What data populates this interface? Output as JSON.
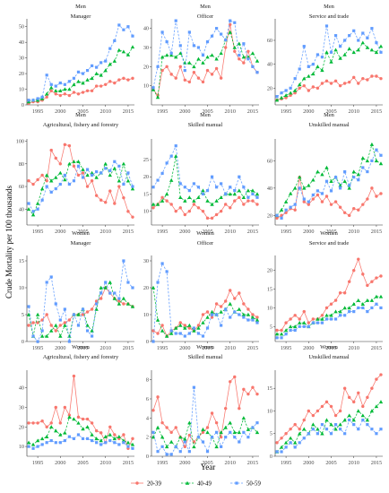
{
  "chart_data": {
    "type": "line",
    "x_label": "Year",
    "y_label": "Crude Mortality per 100 thousands",
    "legend": {
      "placement": "bottom",
      "entries": [
        {
          "name": "20-39",
          "color": "#F8766D",
          "marker": "circle"
        },
        {
          "name": "40-49",
          "color": "#00BA38",
          "marker": "triangle"
        },
        {
          "name": "50-59",
          "color": "#619CFF",
          "marker": "square"
        }
      ]
    },
    "series_styles": {
      "20-39": "solid",
      "40-49": "dashed",
      "50-59": "dashed"
    },
    "x_ticks": [
      1995,
      2000,
      2005,
      2010,
      2015
    ],
    "xlim": [
      1992.6,
      2016.4
    ],
    "years": [
      1993,
      1994,
      1995,
      1996,
      1997,
      1998,
      1999,
      2000,
      2001,
      2002,
      2003,
      2004,
      2005,
      2006,
      2007,
      2008,
      2009,
      2010,
      2011,
      2012,
      2013,
      2014,
      2015,
      2016
    ],
    "panels": [
      {
        "group": "Men",
        "occupation": "Manager",
        "ylim": [
          0,
          55
        ],
        "yticks": [
          0,
          10,
          20,
          30,
          40,
          50
        ],
        "series": {
          "20-39": [
            1,
            2,
            2,
            3,
            5,
            9,
            7,
            6,
            7,
            6,
            8,
            7,
            8,
            9,
            9,
            12,
            12,
            13,
            15,
            14,
            16,
            17,
            16,
            17
          ],
          "40-49": [
            2,
            3,
            3,
            4,
            7,
            11,
            9,
            9,
            10,
            10,
            13,
            15,
            14,
            16,
            17,
            20,
            19,
            22,
            26,
            28,
            35,
            34,
            32,
            37
          ],
          "50-59": [
            3,
            3,
            4,
            5,
            19,
            13,
            12,
            14,
            13,
            15,
            17,
            21,
            20,
            22,
            25,
            24,
            27,
            28,
            36,
            41,
            51,
            48,
            50,
            44
          ]
        }
      },
      {
        "group": "Men",
        "occupation": "Officer",
        "ylim": [
          0,
          45
        ],
        "yticks": [
          10,
          20,
          30,
          40
        ],
        "series": {
          "20-39": [
            8,
            5,
            18,
            20,
            16,
            14,
            20,
            13,
            12,
            17,
            14,
            12,
            18,
            16,
            19,
            14,
            30,
            42,
            28,
            24,
            22,
            28,
            20,
            17
          ],
          "40-49": [
            8,
            4,
            25,
            26,
            26,
            25,
            27,
            22,
            22,
            20,
            24,
            22,
            25,
            26,
            24,
            27,
            34,
            38,
            30,
            32,
            25,
            25,
            27,
            23
          ],
          "50-59": [
            9,
            20,
            38,
            33,
            27,
            44,
            31,
            18,
            38,
            31,
            30,
            26,
            33,
            36,
            40,
            37,
            34,
            44,
            43,
            26,
            32,
            24,
            20,
            17
          ]
        }
      },
      {
        "group": "Men",
        "occupation": "Service and trade",
        "ylim": [
          6,
          78
        ],
        "yticks": [
          20,
          40,
          60
        ],
        "series": {
          "20-39": [
            10,
            11,
            12,
            14,
            16,
            20,
            22,
            18,
            21,
            20,
            24,
            26,
            24,
            26,
            22,
            24,
            25,
            29,
            24,
            28,
            27,
            30,
            30,
            28
          ],
          "40-49": [
            10,
            12,
            14,
            16,
            18,
            23,
            28,
            30,
            32,
            38,
            35,
            50,
            42,
            52,
            45,
            48,
            53,
            50,
            52,
            58,
            54,
            52,
            50,
            55
          ],
          "50-59": [
            13,
            16,
            18,
            20,
            28,
            36,
            55,
            38,
            40,
            48,
            46,
            72,
            50,
            64,
            55,
            60,
            64,
            68,
            60,
            66,
            62,
            70,
            58,
            50
          ]
        }
      },
      {
        "group": "Men",
        "occupation": "Agricultural, fishery and forestry",
        "ylim": [
          26,
          102
        ],
        "yticks": [
          40,
          60,
          80,
          100
        ],
        "series": {
          "20-39": [
            65,
            62,
            66,
            70,
            65,
            92,
            85,
            80,
            97,
            96,
            78,
            70,
            72,
            60,
            65,
            52,
            48,
            46,
            56,
            45,
            60,
            50,
            38,
            33
          ],
          "40-49": [
            40,
            35,
            45,
            58,
            70,
            65,
            68,
            72,
            66,
            80,
            82,
            82,
            75,
            70,
            72,
            68,
            72,
            80,
            70,
            76,
            65,
            80,
            65,
            58
          ],
          "50-59": [
            45,
            38,
            40,
            48,
            60,
            55,
            58,
            62,
            70,
            62,
            65,
            78,
            68,
            75,
            70,
            73,
            72,
            76,
            74,
            82,
            78,
            62,
            72,
            60
          ]
        }
      },
      {
        "group": "Men",
        "occupation": "Skilled manual",
        "ylim": [
          6,
          31
        ],
        "yticks": [
          10,
          15,
          20,
          25
        ],
        "series": {
          "20-39": [
            11,
            12,
            14,
            13,
            12,
            10,
            11,
            9,
            10,
            12,
            11,
            10,
            8,
            8,
            9,
            10,
            12,
            11,
            13,
            14,
            12,
            13,
            13,
            12
          ],
          "40-49": [
            12,
            12,
            13,
            15,
            19,
            26,
            14,
            13,
            14,
            13,
            14,
            16,
            13,
            12,
            13,
            14,
            15,
            15,
            15,
            16,
            14,
            16,
            16,
            15
          ],
          "50-59": [
            17,
            19,
            21,
            24,
            26,
            29,
            18,
            17,
            16,
            18,
            17,
            15,
            16,
            20,
            17,
            18,
            15,
            17,
            16,
            20,
            17,
            14,
            15,
            14
          ]
        }
      },
      {
        "group": "Men",
        "occupation": "Unskilled manual",
        "ylim": [
          13,
          76
        ],
        "yticks": [
          20,
          40,
          60
        ],
        "series": {
          "20-39": [
            18,
            20,
            22,
            25,
            24,
            48,
            30,
            28,
            32,
            35,
            30,
            34,
            28,
            30,
            26,
            22,
            20,
            25,
            24,
            28,
            32,
            40,
            34,
            36
          ],
          "40-49": [
            20,
            24,
            30,
            36,
            40,
            48,
            40,
            42,
            46,
            52,
            50,
            55,
            45,
            48,
            42,
            45,
            40,
            52,
            50,
            62,
            60,
            72,
            60,
            58
          ],
          "50-59": [
            20,
            18,
            24,
            26,
            28,
            40,
            32,
            30,
            35,
            38,
            36,
            45,
            38,
            48,
            40,
            52,
            42,
            48,
            46,
            55,
            52,
            60,
            68,
            64
          ]
        }
      },
      {
        "group": "Women",
        "occupation": "Manager",
        "ylim": [
          0,
          16
        ],
        "yticks": [
          0,
          5,
          10,
          15
        ],
        "series": {
          "20-39": [
            3,
            3.5,
            3.5,
            4,
            5,
            3,
            2,
            3,
            3.5,
            4,
            5,
            5,
            5,
            5.5,
            6,
            7.5,
            8,
            10,
            9,
            8,
            7.5,
            7,
            7,
            6.5
          ],
          "40-49": [
            5,
            1,
            5,
            1,
            1,
            2,
            3,
            1,
            3,
            1,
            5,
            5,
            6,
            3,
            2,
            6,
            10,
            10,
            11,
            8,
            7,
            8,
            7,
            6.5
          ],
          "50-59": [
            6.5,
            1,
            0,
            2,
            11,
            12,
            7,
            4,
            6,
            0,
            5,
            3,
            6,
            2,
            1,
            7,
            9,
            11,
            9,
            9,
            8,
            15,
            11,
            10
          ]
        }
      },
      {
        "group": "Women",
        "occupation": "Officer",
        "ylim": [
          0,
          32
        ],
        "yticks": [
          0,
          10,
          20,
          30
        ],
        "series": {
          "20-39": [
            4,
            3,
            6,
            2,
            4,
            5,
            7,
            6,
            5,
            4,
            6,
            10,
            11,
            9,
            14,
            13,
            15,
            19,
            16,
            18,
            14,
            12,
            10,
            9
          ],
          "40-49": [
            20,
            8,
            4,
            2,
            3,
            5,
            6,
            5,
            6,
            4,
            5,
            7,
            9,
            11,
            10,
            11,
            12,
            14,
            11,
            12,
            10,
            10,
            9,
            8
          ],
          "50-59": [
            0,
            22,
            29,
            26,
            4,
            3,
            3,
            2,
            3,
            5,
            3,
            2,
            5,
            10,
            10,
            6,
            12,
            9,
            11,
            10,
            9,
            8,
            8,
            7
          ]
        }
      },
      {
        "group": "Women",
        "occupation": "Service and trade",
        "ylim": [
          1,
          24
        ],
        "yticks": [
          5,
          10,
          15,
          20
        ],
        "series": {
          "20-39": [
            4,
            4,
            6,
            7,
            8,
            7,
            9,
            6,
            7,
            7,
            8,
            10,
            11,
            12,
            14,
            14,
            17,
            20,
            23,
            19,
            16,
            17,
            18,
            18.5
          ],
          "40-49": [
            3,
            3,
            4,
            5,
            5,
            6,
            6,
            5,
            6,
            7,
            7,
            8,
            8,
            9,
            9,
            10,
            10,
            11,
            12,
            11,
            12,
            12,
            13,
            13
          ],
          "50-59": [
            2,
            2,
            3,
            4,
            4,
            5,
            5,
            5,
            6,
            6,
            6,
            7,
            7,
            7,
            8,
            8,
            9,
            9,
            10,
            10,
            9,
            10,
            11,
            10
          ]
        }
      },
      {
        "group": "Women",
        "occupation": "Agricultural, fishery and forestry",
        "ylim": [
          5,
          49
        ],
        "yticks": [
          10,
          20,
          30,
          40
        ],
        "series": {
          "20-39": [
            22,
            22,
            22,
            23,
            20,
            22,
            30,
            22,
            30,
            26,
            46,
            25,
            24,
            24,
            22,
            18,
            17,
            12,
            20,
            16,
            14,
            16,
            9,
            14
          ],
          "40-49": [
            12,
            11,
            13,
            14,
            15,
            20,
            18,
            16,
            17,
            25,
            24,
            22,
            19,
            20,
            16,
            14,
            13,
            15,
            16,
            14,
            15,
            13,
            12,
            11
          ],
          "50-59": [
            10,
            9,
            10,
            11,
            12,
            13,
            12,
            12,
            13,
            15,
            14,
            16,
            14,
            14,
            13,
            12,
            11,
            12,
            13,
            12,
            11,
            12,
            10,
            9
          ]
        }
      },
      {
        "group": "Women",
        "occupation": "Skilled manual",
        "ylim": [
          0,
          9
        ],
        "yticks": [
          0,
          2,
          4,
          6,
          8
        ],
        "series": {
          "20-39": [
            4.8,
            6.2,
            3.5,
            3.0,
            2.5,
            3.0,
            2.0,
            1.0,
            2.2,
            1.5,
            2.0,
            2.5,
            3.0,
            4.5,
            3.5,
            2.0,
            5.0,
            7.8,
            8.3,
            5.0,
            7.0,
            6.5,
            7.2,
            6.5
          ],
          "40-49": [
            2.0,
            3.0,
            2.0,
            1.0,
            1.5,
            1.0,
            2.0,
            1.8,
            3.5,
            1.0,
            2.0,
            2.8,
            2.5,
            2.0,
            1.0,
            2.5,
            3.0,
            3.5,
            2.5,
            2.5,
            4.0,
            2.8,
            3.0,
            2.5
          ],
          "50-59": [
            2.5,
            0.5,
            1.0,
            0.2,
            0.2,
            1.0,
            0.5,
            1.5,
            0.5,
            7.2,
            2.0,
            1.5,
            0.5,
            2.0,
            2.5,
            1.0,
            2.0,
            2.5,
            2.0,
            1.5,
            2.5,
            2.0,
            3.0,
            3.5
          ]
        }
      },
      {
        "group": "Women",
        "occupation": "Unskilled manual",
        "ylim": [
          0,
          19
        ],
        "yticks": [
          0,
          5,
          10,
          15
        ],
        "series": {
          "20-39": [
            3,
            4,
            5,
            6,
            7,
            6,
            8,
            10,
            9,
            10,
            11,
            12,
            11,
            9,
            10,
            15,
            13,
            12,
            14,
            11,
            13,
            15,
            17,
            18
          ],
          "40-49": [
            1,
            2,
            3,
            4,
            3,
            5,
            6,
            5,
            7,
            6,
            5,
            8,
            7,
            6,
            7,
            8,
            9,
            8,
            10,
            9,
            8,
            10,
            11,
            12
          ],
          "50-59": [
            1,
            1,
            2,
            3,
            2,
            3,
            4,
            5,
            6,
            5,
            7,
            6,
            5,
            7,
            6,
            5,
            8,
            7,
            6,
            8,
            7,
            6,
            5,
            6
          ]
        }
      }
    ]
  }
}
